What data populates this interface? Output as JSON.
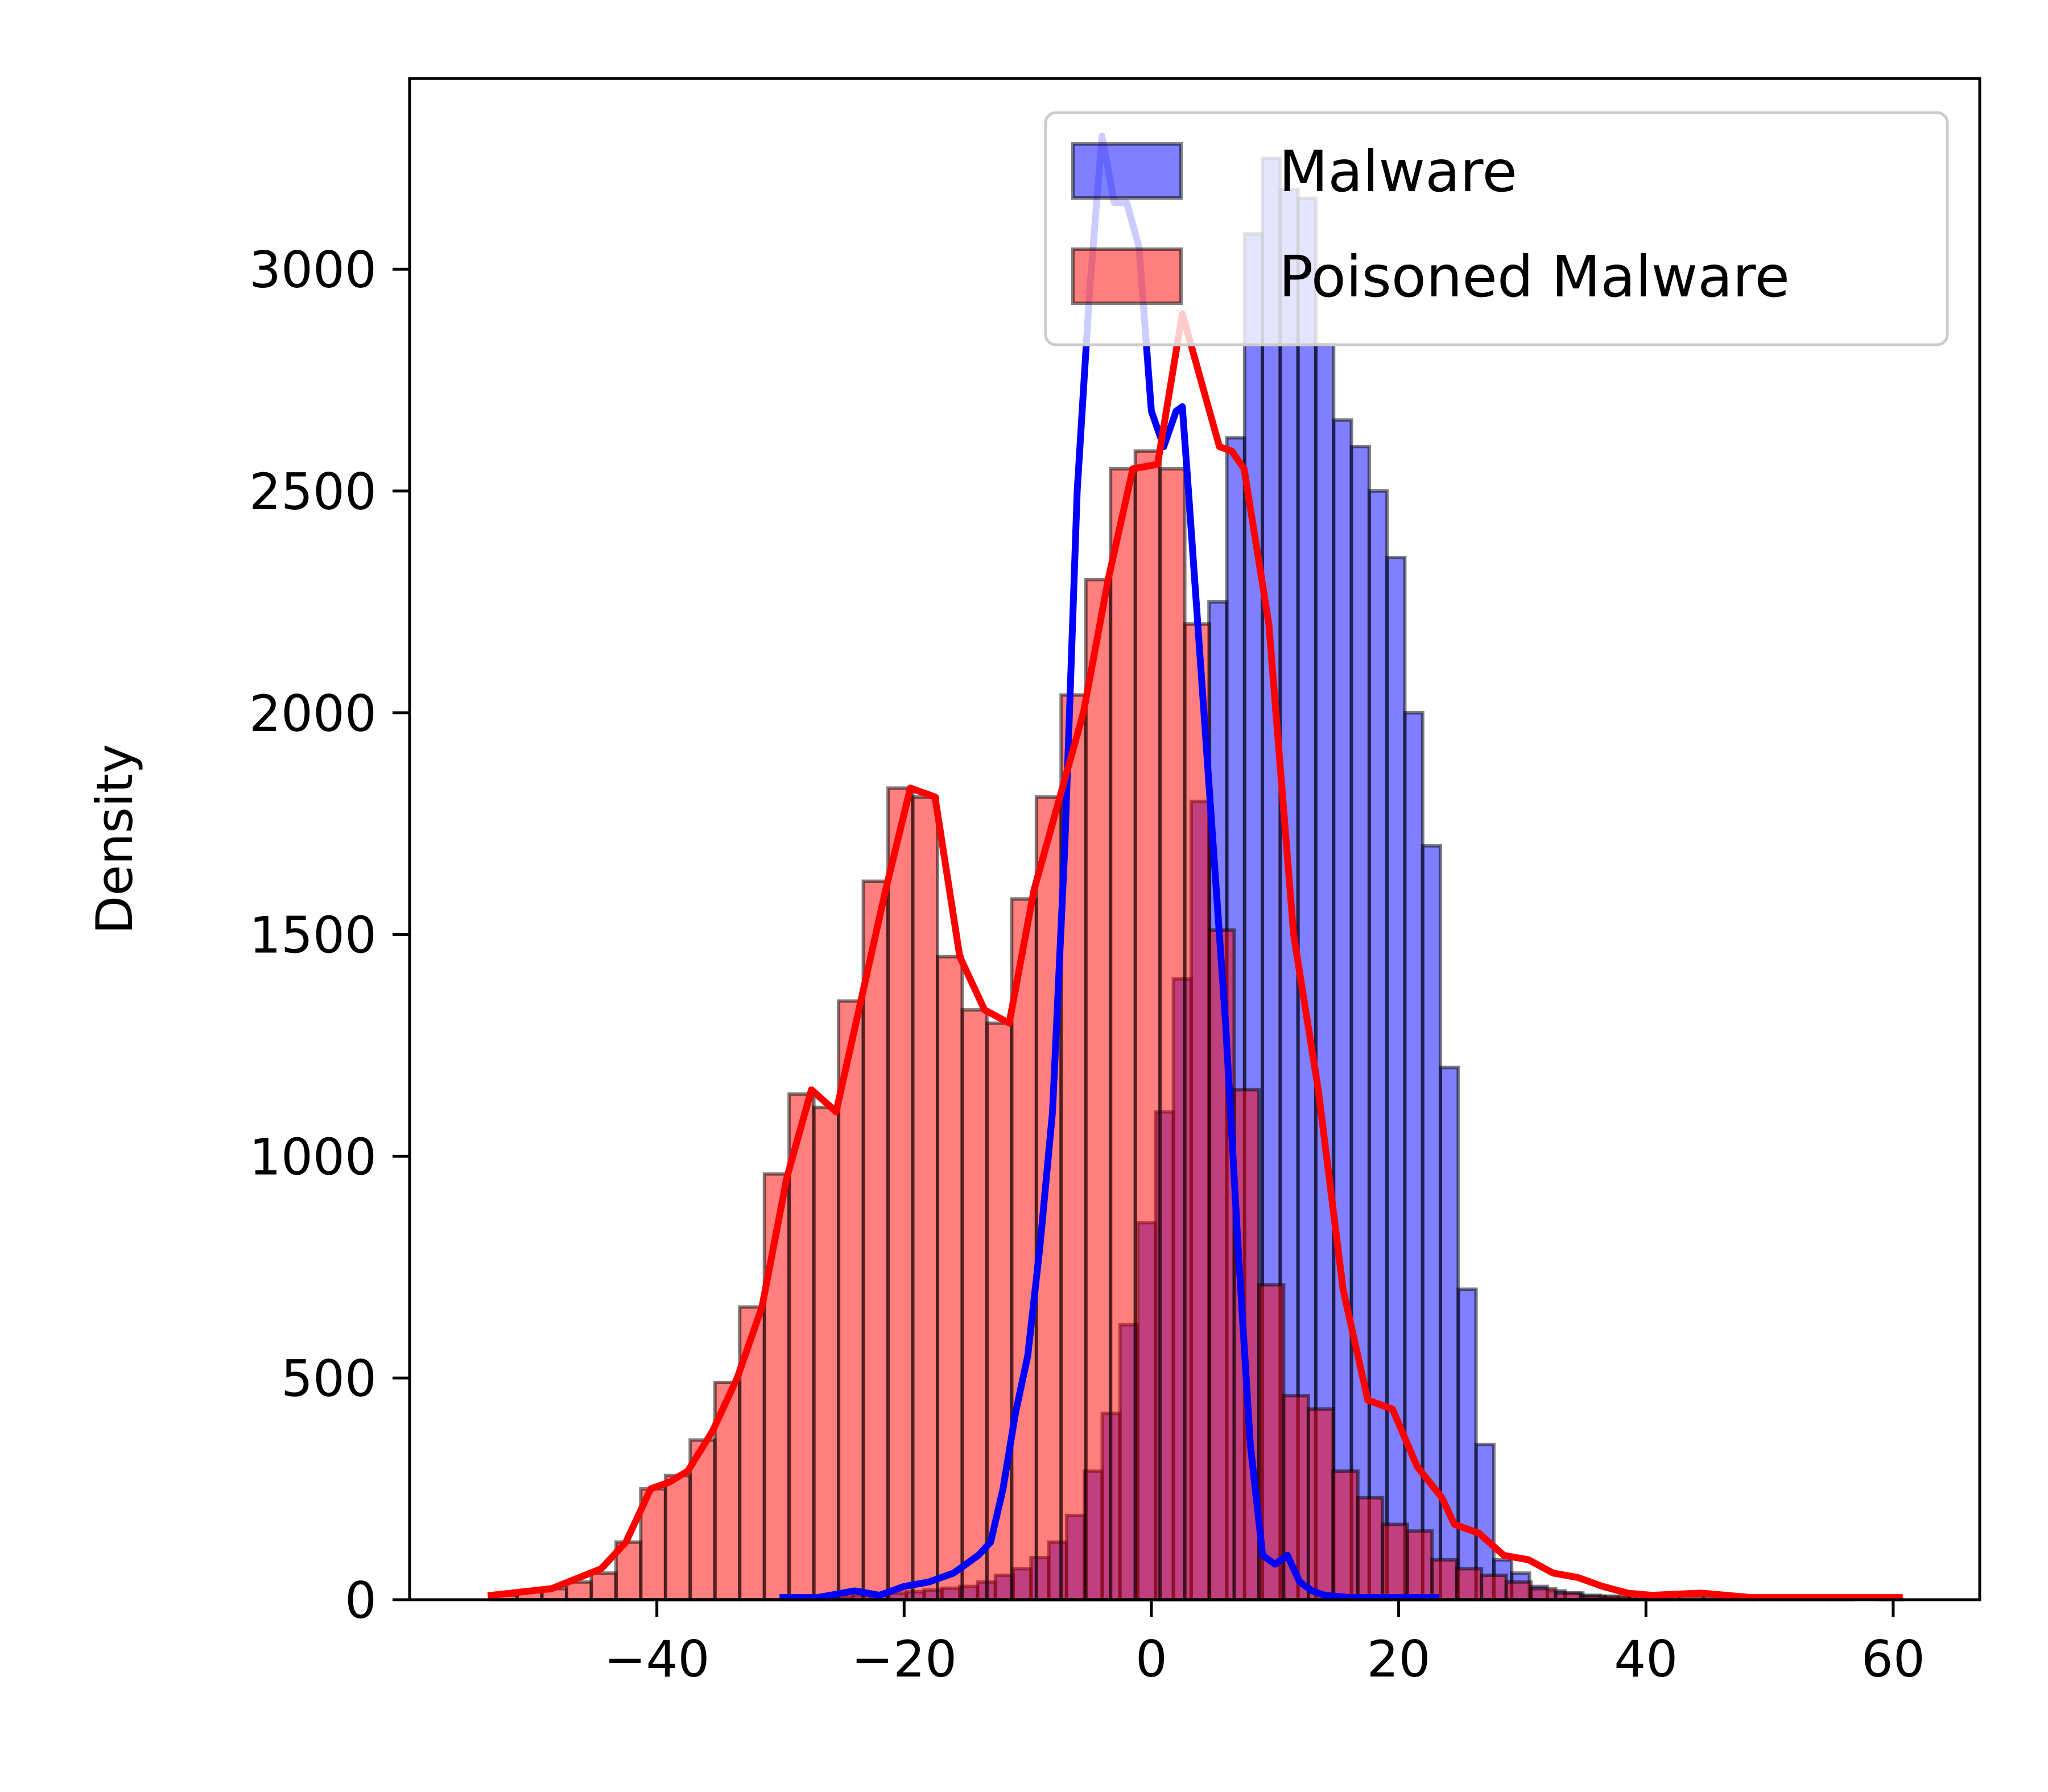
{
  "chart_data": {
    "type": "histogram",
    "title": "",
    "xlabel": "",
    "ylabel": "Density",
    "xlim": [
      -60,
      67
    ],
    "ylim": [
      0,
      3430
    ],
    "xticks": [
      -40,
      -20,
      0,
      20,
      40,
      60
    ],
    "yticks": [
      0,
      500,
      1000,
      1500,
      2000,
      2500,
      3000
    ],
    "xtick_labels": [
      "−40",
      "−20",
      "0",
      "20",
      "40",
      "60"
    ],
    "ytick_labels": [
      "0",
      "500",
      "1000",
      "1500",
      "2000",
      "2500",
      "3000"
    ],
    "grid": false,
    "legend_position": "top-right",
    "series": [
      {
        "name": "Malware",
        "fill_color": "#0000ff",
        "line_color": "#0000ff",
        "bin_start": -29.9,
        "bin_width": 1.44,
        "values": [
          3,
          4,
          6,
          8,
          10,
          12,
          15,
          18,
          22,
          26,
          30,
          40,
          55,
          70,
          95,
          130,
          190,
          290,
          420,
          620,
          850,
          1100,
          1400,
          1800,
          2250,
          2620,
          3080,
          3250,
          3180,
          3160,
          2830,
          2660,
          2600,
          2500,
          2350,
          2000,
          1700,
          1200,
          700,
          350,
          90,
          60,
          30,
          20,
          15,
          10,
          6,
          4,
          3,
          2
        ],
        "kde_x": [
          -29.8,
          -27,
          -24,
          -22,
          -20,
          -18,
          -16,
          -14,
          -13,
          -12,
          -11,
          -10,
          -9,
          -8,
          -7,
          -6,
          -5,
          -4,
          -3,
          -2,
          -1,
          0,
          1,
          2,
          2.5,
          3,
          4,
          5,
          6,
          7,
          8,
          9,
          10,
          11,
          12,
          13,
          14,
          16,
          18,
          20,
          23
        ],
        "kde_y": [
          5,
          5,
          20,
          10,
          30,
          40,
          60,
          100,
          130,
          250,
          420,
          550,
          800,
          1100,
          1700,
          2500,
          2950,
          3300,
          3150,
          3150,
          3050,
          2680,
          2600,
          2680,
          2690,
          2500,
          2100,
          1700,
          1300,
          800,
          350,
          100,
          80,
          100,
          40,
          20,
          10,
          5,
          5,
          5,
          5
        ]
      },
      {
        "name": "Poisoned Malware",
        "fill_color": "#ff0000",
        "line_color": "#ff0000",
        "bin_start": -53.3,
        "bin_width": 2.0,
        "values": [
          10,
          18,
          25,
          40,
          60,
          130,
          250,
          280,
          360,
          490,
          660,
          960,
          1140,
          1110,
          1350,
          1620,
          1830,
          1810,
          1450,
          1330,
          1300,
          1580,
          1810,
          2040,
          2300,
          2550,
          2590,
          2550,
          2200,
          1510,
          1150,
          710,
          460,
          430,
          290,
          230,
          170,
          155,
          90,
          70,
          55,
          40,
          25,
          15,
          8,
          8,
          10,
          8,
          8,
          5,
          5,
          4,
          3,
          2,
          1,
          0,
          1
        ],
        "kde_x": [
          -53.4,
          -48.5,
          -44.5,
          -42.5,
          -40.5,
          -39,
          -37.5,
          -35.5,
          -33.5,
          -31.5,
          -29.5,
          -27.5,
          -25.5,
          -23.5,
          -21.5,
          -19.5,
          -17.5,
          -15.5,
          -13.5,
          -11.5,
          -9.5,
          -7.5,
          -5.5,
          -3.5,
          -1.5,
          0.5,
          2.5,
          4.5,
          5.5,
          6.5,
          7.5,
          9.5,
          11.5,
          13.5,
          15.5,
          17.5,
          19.5,
          21.5,
          23.5,
          24.5,
          26.5,
          28.5,
          30.5,
          32.5,
          34.5,
          36.5,
          38.5,
          40.5,
          44.5,
          48.5,
          52.5,
          56.5,
          60.5
        ],
        "kde_y": [
          10,
          25,
          70,
          130,
          250,
          265,
          290,
          380,
          500,
          660,
          950,
          1150,
          1100,
          1350,
          1600,
          1830,
          1810,
          1450,
          1330,
          1300,
          1600,
          1800,
          2000,
          2300,
          2550,
          2560,
          2900,
          2700,
          2600,
          2590,
          2550,
          2200,
          1500,
          1150,
          700,
          450,
          430,
          300,
          230,
          170,
          150,
          100,
          90,
          60,
          50,
          30,
          15,
          10,
          15,
          5,
          5,
          5,
          5
        ]
      }
    ]
  }
}
